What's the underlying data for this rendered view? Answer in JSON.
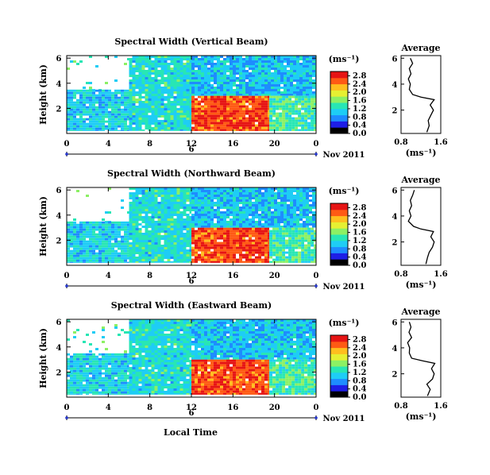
{
  "panels": [
    {
      "title": "Spectral Width (Vertical Beam)",
      "ylabel": "Height (km)",
      "yticks": [
        "2",
        "4",
        "6"
      ],
      "xticks": [
        "0",
        "4",
        "8",
        "12",
        "16",
        "20",
        "0"
      ],
      "day_label": "6",
      "date_label": "Nov 2011",
      "cbar_unit": "(ms⁻¹)",
      "cbar_ticks": [
        "0.0",
        "0.4",
        "0.8",
        "1.2",
        "1.6",
        "2.0",
        "2.4",
        "2.8"
      ],
      "avg_title": "Average",
      "avg_unit": "(ms⁻¹)",
      "avg_xticks": [
        "0.8",
        "1.6"
      ],
      "avg_yticks": [
        "2",
        "4",
        "6"
      ]
    },
    {
      "title": "Spectral Width (Northward Beam)",
      "ylabel": "Height (km)",
      "yticks": [
        "2",
        "4",
        "6"
      ],
      "xticks": [
        "0",
        "4",
        "8",
        "12",
        "16",
        "20",
        "0"
      ],
      "day_label": "6",
      "date_label": "Nov 2011",
      "cbar_unit": "(ms⁻¹)",
      "cbar_ticks": [
        "0.0",
        "0.4",
        "0.8",
        "1.2",
        "1.6",
        "2.0",
        "2.4",
        "2.8"
      ],
      "avg_title": "Average",
      "avg_unit": "(ms⁻¹)",
      "avg_xticks": [
        "0.8",
        "1.6"
      ],
      "avg_yticks": [
        "2",
        "4",
        "6"
      ]
    },
    {
      "title": "Spectral Width (Eastward Beam)",
      "ylabel": "Height (km)",
      "yticks": [
        "2",
        "4",
        "6"
      ],
      "xticks": [
        "0",
        "4",
        "8",
        "12",
        "16",
        "20",
        "0"
      ],
      "day_label": "6",
      "date_label": "Nov 2011",
      "cbar_unit": "(ms⁻¹)",
      "cbar_ticks": [
        "0.0",
        "0.4",
        "0.8",
        "1.2",
        "1.6",
        "2.0",
        "2.4",
        "2.8"
      ],
      "avg_title": "Average",
      "avg_unit": "(ms⁻¹)",
      "avg_xticks": [
        "0.8",
        "1.6"
      ],
      "avg_yticks": [
        "2",
        "4",
        "6"
      ]
    }
  ],
  "xlabel": "Local Time",
  "colormap": [
    "#000000",
    "#1e1ee6",
    "#1e8cff",
    "#1ecdf5",
    "#28e6b4",
    "#8cf064",
    "#e6f032",
    "#ffbe1e",
    "#ff5a14",
    "#e61414"
  ],
  "chart_data": [
    {
      "type": "heatmap",
      "title": "Spectral Width (Vertical Beam)",
      "ylabel": "Height (km)",
      "xlim": [
        0,
        24
      ],
      "ylim": [
        0,
        6.2
      ],
      "colorbar": {
        "unit": "(ms⁻¹)",
        "range": [
          0.0,
          2.8
        ]
      },
      "regions": [
        {
          "x": [
            0,
            6
          ],
          "y": [
            0.2,
            3.5
          ],
          "value": 1.0
        },
        {
          "x": [
            0,
            6
          ],
          "y": [
            3.5,
            6.2
          ],
          "value": null
        },
        {
          "x": [
            6,
            12
          ],
          "y": [
            0.2,
            6.2
          ],
          "value": 1.1
        },
        {
          "x": [
            12,
            19.5
          ],
          "y": [
            0.2,
            3.0
          ],
          "value": 2.6
        },
        {
          "x": [
            12,
            24
          ],
          "y": [
            3.0,
            6.2
          ],
          "value": 0.9
        },
        {
          "x": [
            19.5,
            24
          ],
          "y": [
            0.2,
            3.0
          ],
          "value": 1.3
        }
      ],
      "profile": {
        "title": "Average",
        "xlabel": "(ms⁻¹)",
        "xlim": [
          0.6,
          1.8
        ],
        "ylim": [
          0.2,
          6.2
        ],
        "height": [
          0.3,
          0.8,
          1.2,
          1.6,
          2.0,
          2.4,
          2.8,
          3.0,
          3.2,
          3.6,
          4.0,
          4.4,
          4.8,
          5.2,
          5.6,
          6.0
        ],
        "value": [
          1.38,
          1.45,
          1.42,
          1.5,
          1.58,
          1.48,
          1.6,
          1.2,
          0.95,
          0.85,
          0.88,
          0.82,
          0.9,
          0.85,
          0.95,
          0.88
        ]
      }
    },
    {
      "type": "heatmap",
      "title": "Spectral Width (Northward Beam)",
      "ylabel": "Height (km)",
      "xlim": [
        0,
        24
      ],
      "ylim": [
        0,
        6.2
      ],
      "colorbar": {
        "unit": "(ms⁻¹)",
        "range": [
          0.0,
          2.8
        ]
      },
      "regions": [
        {
          "x": [
            0,
            6
          ],
          "y": [
            0.2,
            3.5
          ],
          "value": 1.0
        },
        {
          "x": [
            0,
            6
          ],
          "y": [
            3.5,
            6.2
          ],
          "value": null
        },
        {
          "x": [
            6,
            12
          ],
          "y": [
            0.2,
            6.2
          ],
          "value": 1.1
        },
        {
          "x": [
            12,
            19.5
          ],
          "y": [
            0.2,
            3.0
          ],
          "value": 2.6
        },
        {
          "x": [
            12,
            24
          ],
          "y": [
            3.0,
            6.2
          ],
          "value": 0.9
        },
        {
          "x": [
            19.5,
            24
          ],
          "y": [
            0.2,
            3.0
          ],
          "value": 1.3
        }
      ],
      "profile": {
        "title": "Average",
        "xlabel": "(ms⁻¹)",
        "xlim": [
          0.6,
          1.8
        ],
        "ylim": [
          0.2,
          6.2
        ],
        "height": [
          0.3,
          0.8,
          1.2,
          1.6,
          2.0,
          2.4,
          2.8,
          3.0,
          3.2,
          3.6,
          4.0,
          4.4,
          4.8,
          5.2,
          5.6,
          6.0
        ],
        "value": [
          1.35,
          1.4,
          1.45,
          1.55,
          1.6,
          1.5,
          1.58,
          1.2,
          0.98,
          0.82,
          0.9,
          0.85,
          0.92,
          0.88,
          0.95,
          1.0
        ]
      }
    },
    {
      "type": "heatmap",
      "title": "Spectral Width (Eastward Beam)",
      "ylabel": "Height (km)",
      "xlim": [
        0,
        24
      ],
      "ylim": [
        0,
        6.2
      ],
      "colorbar": {
        "unit": "(ms⁻¹)",
        "range": [
          0.0,
          2.8
        ]
      },
      "regions": [
        {
          "x": [
            0,
            6
          ],
          "y": [
            0.2,
            3.5
          ],
          "value": 1.0
        },
        {
          "x": [
            0,
            6
          ],
          "y": [
            3.5,
            6.2
          ],
          "value": null
        },
        {
          "x": [
            6,
            12
          ],
          "y": [
            0.2,
            6.2
          ],
          "value": 1.1
        },
        {
          "x": [
            12,
            19.5
          ],
          "y": [
            0.2,
            3.0
          ],
          "value": 2.6
        },
        {
          "x": [
            12,
            24
          ],
          "y": [
            3.0,
            6.2
          ],
          "value": 0.9
        },
        {
          "x": [
            19.5,
            24
          ],
          "y": [
            0.2,
            3.0
          ],
          "value": 1.3
        }
      ],
      "profile": {
        "title": "Average",
        "xlabel": "(ms⁻¹)",
        "xlim": [
          0.6,
          1.8
        ],
        "ylim": [
          0.2,
          6.2
        ],
        "height": [
          0.3,
          0.8,
          1.2,
          1.6,
          2.0,
          2.4,
          2.8,
          3.0,
          3.2,
          3.6,
          4.0,
          4.4,
          4.8,
          5.2,
          5.6,
          6.0
        ],
        "value": [
          1.4,
          1.48,
          1.38,
          1.55,
          1.6,
          1.52,
          1.62,
          1.25,
          0.92,
          0.85,
          0.86,
          0.8,
          0.92,
          0.84,
          0.9,
          0.85
        ]
      }
    }
  ]
}
